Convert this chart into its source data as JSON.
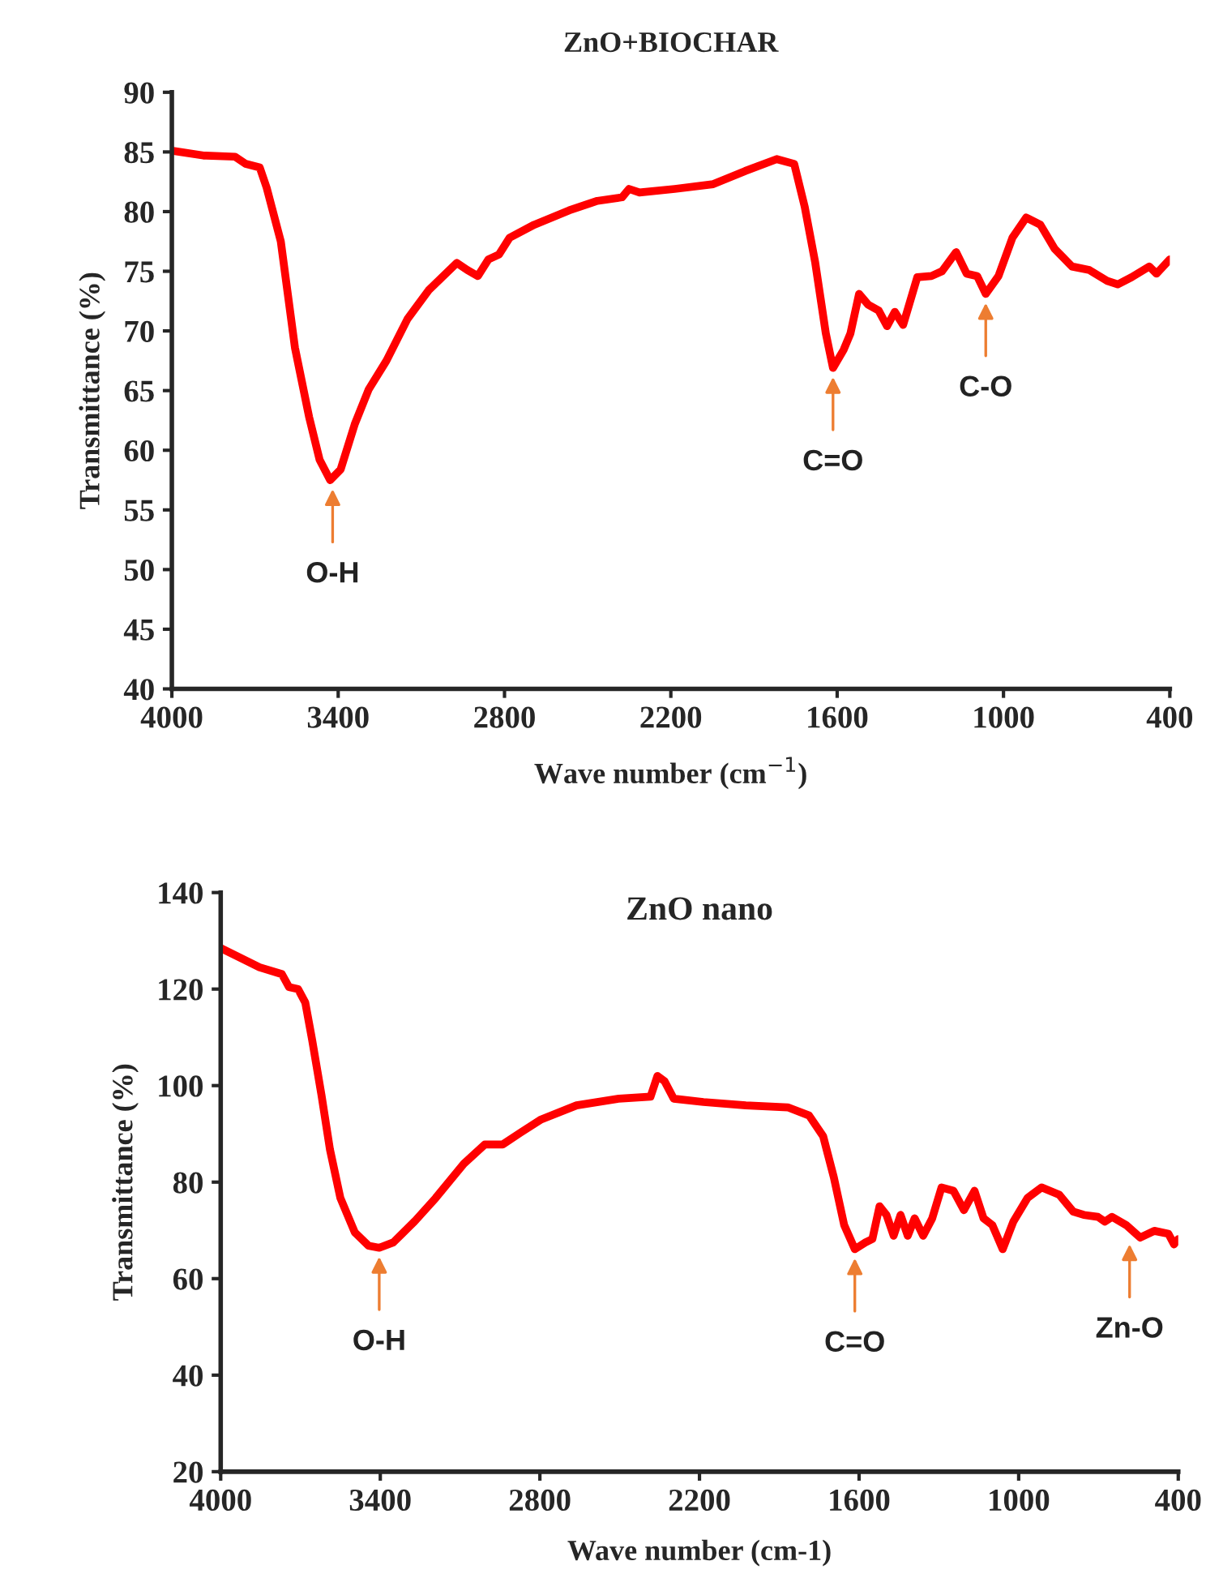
{
  "chart_data": [
    {
      "type": "line",
      "title": "ZnO+BIOCHAR",
      "xlabel": "Wave number (cm$^{−1}$)",
      "ylabel": "Transmittance (%)",
      "xlim": [
        4000,
        400
      ],
      "xticks": [
        4000,
        3400,
        2800,
        2200,
        1600,
        1000,
        400
      ],
      "ylim": [
        40,
        90
      ],
      "yticks": [
        40,
        45,
        50,
        55,
        60,
        65,
        70,
        75,
        80,
        85,
        90
      ],
      "series": [
        {
          "color": "#ff0000",
          "x": [
            4000,
            3886,
            3772,
            3734,
            3683,
            3658,
            3607,
            3556,
            3505,
            3467,
            3429,
            3391,
            3340,
            3290,
            3226,
            3150,
            3074,
            2972,
            2934,
            2896,
            2858,
            2820,
            2782,
            2693,
            2567,
            2465,
            2376,
            2351,
            2313,
            2186,
            2047,
            1932,
            1818,
            1755,
            1717,
            1679,
            1641,
            1615,
            1577,
            1552,
            1521,
            1488,
            1450,
            1420,
            1392,
            1362,
            1311,
            1260,
            1222,
            1171,
            1133,
            1095,
            1064,
            1018,
            968,
            918,
            867,
            816,
            753,
            690,
            626,
            588,
            538,
            474,
            448,
            400
          ],
          "values": [
            85.1,
            84.7,
            84.6,
            84.0,
            83.7,
            82.0,
            77.5,
            68.6,
            62.8,
            59.2,
            57.5,
            58.4,
            62.2,
            65.1,
            67.5,
            71.0,
            73.4,
            75.7,
            75.1,
            74.6,
            76.0,
            76.4,
            77.8,
            78.9,
            80.1,
            80.9,
            81.2,
            81.9,
            81.6,
            81.9,
            82.3,
            83.4,
            84.4,
            84.0,
            80.4,
            75.7,
            69.8,
            66.9,
            68.4,
            69.8,
            73.1,
            72.2,
            71.7,
            70.4,
            71.6,
            70.5,
            74.5,
            74.6,
            75.0,
            76.6,
            74.8,
            74.6,
            73.1,
            74.6,
            77.8,
            79.5,
            78.9,
            76.9,
            75.4,
            75.1,
            74.2,
            73.9,
            74.5,
            75.4,
            74.8,
            76.0
          ]
        }
      ],
      "annotations": [
        {
          "text": "O-H",
          "x": 3420,
          "y": 57.5
        },
        {
          "text": "C=O",
          "x": 1615,
          "y": 66.9
        },
        {
          "text": "C-O",
          "x": 1064,
          "y": 73.1
        }
      ]
    },
    {
      "type": "line",
      "title": "ZnO nano",
      "xlabel": "Wave number (cm-1)",
      "ylabel": "Transmittance (%)",
      "xlim": [
        4000,
        400
      ],
      "xticks": [
        4000,
        3400,
        2800,
        2200,
        1600,
        1000,
        400
      ],
      "ylim": [
        20,
        140
      ],
      "yticks": [
        20,
        40,
        60,
        80,
        100,
        120,
        140
      ],
      "series": [
        {
          "color": "#ff0000",
          "x": [
            4000,
            3934,
            3854,
            3770,
            3743,
            3709,
            3682,
            3656,
            3621,
            3589,
            3550,
            3496,
            3444,
            3404,
            3351,
            3272,
            3192,
            3086,
            3007,
            2940,
            2874,
            2795,
            2662,
            2503,
            2384,
            2358,
            2331,
            2297,
            2185,
            2026,
            1868,
            1788,
            1735,
            1695,
            1656,
            1616,
            1576,
            1550,
            1523,
            1497,
            1470,
            1444,
            1417,
            1391,
            1359,
            1325,
            1290,
            1245,
            1206,
            1166,
            1132,
            1099,
            1060,
            1020,
            967,
            914,
            848,
            795,
            755,
            702,
            676,
            649,
            596,
            543,
            490,
            437,
            416,
            400
          ],
          "values": [
            128.5,
            126.7,
            124.5,
            123.1,
            120.4,
            120.0,
            117.2,
            109.4,
            98.0,
            86.7,
            76.7,
            69.6,
            66.8,
            66.4,
            67.5,
            71.8,
            76.7,
            83.8,
            87.8,
            87.8,
            90.2,
            93.0,
            95.9,
            97.3,
            97.7,
            102.0,
            100.9,
            97.3,
            96.6,
            95.9,
            95.5,
            93.8,
            89.5,
            81.0,
            71.1,
            66.1,
            67.5,
            68.2,
            75.0,
            73.2,
            68.9,
            73.2,
            68.9,
            72.5,
            68.9,
            72.5,
            78.9,
            78.2,
            74.2,
            78.2,
            72.5,
            71.1,
            66.1,
            71.8,
            76.7,
            78.9,
            77.4,
            73.9,
            73.2,
            72.8,
            71.8,
            72.8,
            71.1,
            68.5,
            69.9,
            69.3,
            67.1,
            68.2
          ]
        }
      ],
      "annotations": [
        {
          "text": "O-H",
          "x": 3404,
          "y": 66.4
        },
        {
          "text": "C=O",
          "x": 1616,
          "y": 66.1
        },
        {
          "text": "Zn-O",
          "x": 583,
          "y": 69.0
        }
      ]
    }
  ]
}
